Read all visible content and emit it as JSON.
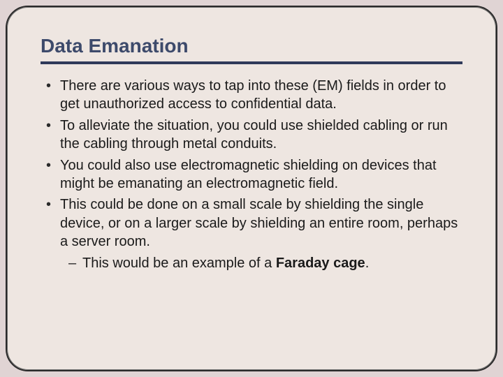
{
  "slide": {
    "title": "Data Emanation",
    "title_color": "#3d4a6b",
    "title_fontsize": 28,
    "rule_color": "#2f3a5a",
    "background_outer": "#e0d4d4",
    "background_inner": "#eee6e1",
    "frame_border_color": "#2a2a2a",
    "frame_radius": 32,
    "body_fontsize": 20,
    "body_color": "#1a1a1a",
    "bullets": [
      {
        "text": "There are various ways to tap into these (EM) fields in order to get unauthorized access to confidential data."
      },
      {
        "text": "To alleviate the situation, you could use shielded cabling or run the cabling through metal conduits."
      },
      {
        "text": "You could also use electromagnetic shielding on devices that might be emanating an electromagnetic field."
      },
      {
        "text": "This could be done on a small scale by shielding the single device, or on a larger scale by shielding an entire room, perhaps a server room.",
        "sub": [
          {
            "prefix": "This would be an example of a ",
            "bold": "Faraday cage",
            "suffix": "."
          }
        ]
      }
    ]
  }
}
